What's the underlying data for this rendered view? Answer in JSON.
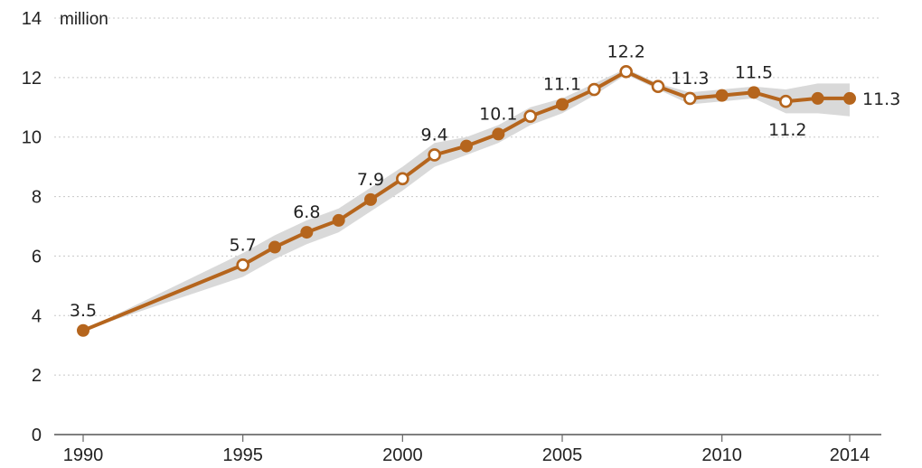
{
  "colors": {
    "line": "#b5651d",
    "band": "#d9d9d9",
    "point_open_fill": "#ffffff"
  },
  "chart_data": {
    "type": "line",
    "title": "",
    "xlabel": "",
    "ylabel": "",
    "y_unit_label": "million",
    "xlim": [
      1990,
      2014
    ],
    "ylim": [
      0,
      14
    ],
    "x_ticks": [
      1990,
      1995,
      2000,
      2005,
      2010,
      2014
    ],
    "x_tick_labels": [
      "1990",
      "1995",
      "2000",
      "2005",
      "2010",
      "2014"
    ],
    "y_ticks": [
      0,
      2,
      4,
      6,
      8,
      10,
      12,
      14
    ],
    "y_tick_labels": [
      "0",
      "2",
      "4",
      "6",
      "8",
      "10",
      "12",
      "14"
    ],
    "grid": true,
    "legend": "none",
    "series": [
      {
        "x": [
          1990,
          1995,
          1996,
          1997,
          1998,
          1999,
          2000,
          2001,
          2002,
          2003,
          2004,
          2005,
          2006,
          2007,
          2008,
          2009,
          2010,
          2011,
          2012,
          2013,
          2014
        ],
        "values": [
          3.5,
          5.7,
          6.3,
          6.8,
          7.2,
          7.9,
          8.6,
          9.4,
          9.7,
          10.1,
          10.7,
          11.1,
          11.6,
          12.2,
          11.7,
          11.3,
          11.4,
          11.5,
          11.2,
          11.3,
          11.3
        ],
        "marker_open": [
          false,
          true,
          false,
          false,
          false,
          false,
          true,
          true,
          false,
          false,
          true,
          false,
          true,
          true,
          true,
          true,
          false,
          false,
          true,
          false,
          false
        ],
        "band_low": [
          3.5,
          5.3,
          5.9,
          6.4,
          6.8,
          7.5,
          8.2,
          9.0,
          9.4,
          9.8,
          10.4,
          10.8,
          11.4,
          12.1,
          11.6,
          11.1,
          11.2,
          11.3,
          10.8,
          10.8,
          10.7
        ],
        "band_high": [
          3.5,
          6.1,
          6.7,
          7.2,
          7.6,
          8.3,
          9.0,
          9.8,
          10.0,
          10.4,
          11.0,
          11.3,
          11.8,
          12.3,
          11.8,
          11.5,
          11.6,
          11.7,
          11.6,
          11.8,
          11.8
        ]
      }
    ],
    "annotations": [
      {
        "x": 1990,
        "text": "3.5",
        "pos": "above"
      },
      {
        "x": 1995,
        "text": "5.7",
        "pos": "above"
      },
      {
        "x": 1997,
        "text": "6.8",
        "pos": "above"
      },
      {
        "x": 1999,
        "text": "7.9",
        "pos": "above"
      },
      {
        "x": 2001,
        "text": "9.4",
        "pos": "above"
      },
      {
        "x": 2003,
        "text": "10.1",
        "pos": "above"
      },
      {
        "x": 2005,
        "text": "11.1",
        "pos": "above"
      },
      {
        "x": 2007,
        "text": "12.2",
        "pos": "above"
      },
      {
        "x": 2009,
        "text": "11.3",
        "pos": "above"
      },
      {
        "x": 2011,
        "text": "11.5",
        "pos": "above"
      },
      {
        "x": 2012,
        "text": "11.2",
        "pos": "below"
      },
      {
        "x": 2014,
        "text": "11.3",
        "pos": "right"
      }
    ]
  }
}
